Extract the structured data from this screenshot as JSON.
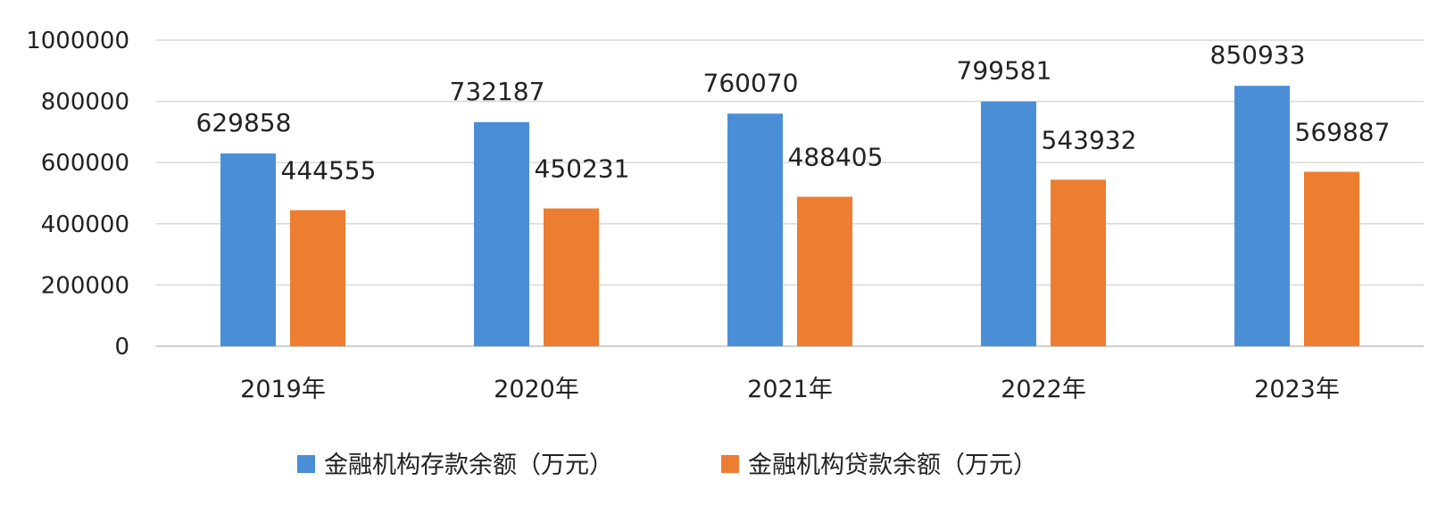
{
  "chart_data": {
    "type": "bar",
    "categories": [
      "2019年",
      "2020年",
      "2021年",
      "2022年",
      "2023年"
    ],
    "series": [
      {
        "name": "金融机构存款余额（万元）",
        "color": "#4a8fd6",
        "values": [
          629858,
          732187,
          760070,
          799581,
          850933
        ],
        "labels": [
          "629858",
          "732187",
          "760070",
          "799581",
          "850933"
        ]
      },
      {
        "name": "金融机构贷款余额（万元）",
        "color": "#ed7d31",
        "values": [
          444555,
          450231,
          488405,
          543932,
          569887
        ],
        "labels": [
          "444555",
          "450231",
          "488405",
          "543932",
          "569887"
        ]
      }
    ],
    "ylim": [
      0,
      1000000
    ],
    "yticks": [
      0,
      200000,
      400000,
      600000,
      800000,
      1000000
    ],
    "ytick_labels": [
      "0",
      "200000",
      "400000",
      "600000",
      "800000",
      "1000000"
    ],
    "grid": true,
    "legend": "bottom"
  }
}
